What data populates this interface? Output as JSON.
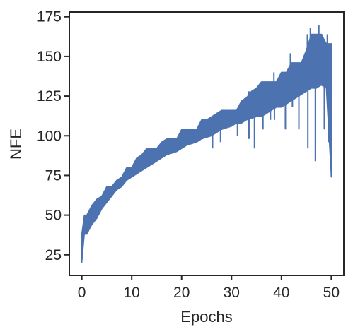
{
  "chart_data": {
    "type": "line",
    "title": "",
    "xlabel": "Epochs",
    "ylabel": "NFE",
    "xlim": [
      -2.5,
      52.5
    ],
    "ylim": [
      12,
      178
    ],
    "xticks": [
      0,
      10,
      20,
      30,
      40,
      50
    ],
    "yticks": [
      25,
      50,
      75,
      100,
      125,
      150,
      175
    ],
    "grid": false,
    "legend": "none",
    "series": [
      {
        "color": "#4c72b0",
        "band": {
          "x": [
            0,
            0.5,
            1,
            2,
            3,
            4,
            5,
            6,
            7,
            8,
            9,
            10,
            11,
            12,
            13,
            14,
            15,
            16,
            17,
            18,
            19,
            20,
            21,
            22,
            23,
            24,
            25,
            26,
            27,
            28,
            29,
            30,
            31,
            32,
            33,
            34,
            35,
            36,
            37,
            38,
            39,
            40,
            41,
            42,
            43,
            44,
            45,
            46,
            47,
            48,
            49,
            50
          ],
          "low": [
            20,
            38,
            38,
            44,
            48,
            54,
            58,
            62,
            66,
            68,
            72,
            74,
            76,
            78,
            80,
            82,
            84,
            86,
            88,
            89,
            90,
            92,
            94,
            95,
            96,
            98,
            99,
            100,
            102,
            104,
            105,
            106,
            108,
            108,
            110,
            111,
            112,
            112,
            114,
            116,
            118,
            118,
            120,
            122,
            124,
            126,
            128,
            130,
            130,
            132,
            130,
            74
          ],
          "high": [
            38,
            50,
            50,
            56,
            60,
            62,
            68,
            68,
            72,
            74,
            80,
            80,
            86,
            88,
            92,
            92,
            92,
            96,
            98,
            98,
            98,
            104,
            104,
            104,
            104,
            110,
            110,
            112,
            114,
            116,
            116,
            116,
            116,
            122,
            124,
            128,
            130,
            134,
            134,
            134,
            134,
            140,
            140,
            146,
            146,
            146,
            154,
            164,
            164,
            164,
            158,
            158
          ]
        },
        "spikes_down": [
          [
            26.2,
            92
          ],
          [
            27.8,
            96
          ],
          [
            31.2,
            100
          ],
          [
            33.5,
            98
          ],
          [
            34.6,
            92
          ],
          [
            36.3,
            104
          ],
          [
            37.8,
            110
          ],
          [
            38.6,
            110
          ],
          [
            40.8,
            104
          ],
          [
            42.2,
            118
          ],
          [
            43.5,
            104
          ],
          [
            45.3,
            92
          ],
          [
            46.8,
            84
          ],
          [
            48.6,
            104
          ],
          [
            49.4,
            96
          ],
          [
            50,
            74
          ]
        ],
        "spikes_up": [
          [
            28.5,
            116
          ],
          [
            33.5,
            128
          ],
          [
            35.4,
            130
          ],
          [
            36.5,
            134
          ],
          [
            38.5,
            140
          ],
          [
            41.8,
            152
          ],
          [
            45.2,
            164
          ],
          [
            45.8,
            168
          ],
          [
            46.5,
            158
          ],
          [
            47.5,
            170
          ],
          [
            48.2,
            164
          ],
          [
            49.2,
            164
          ]
        ]
      }
    ]
  }
}
